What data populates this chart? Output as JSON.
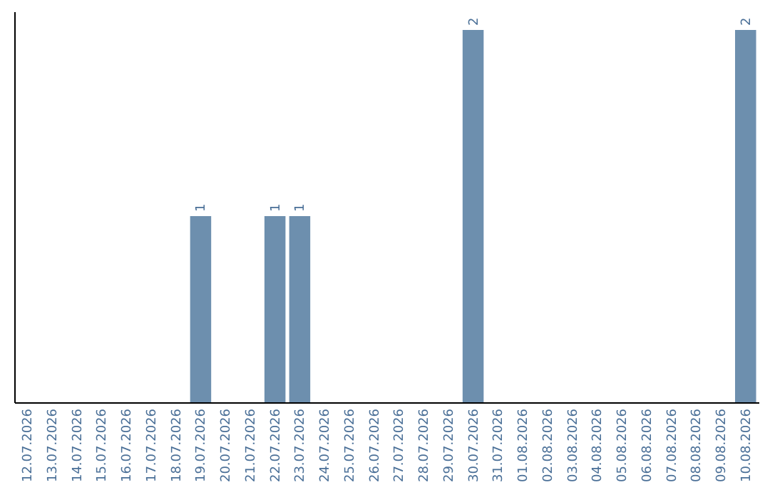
{
  "chart_data": {
    "type": "bar",
    "categories": [
      "12.07.2026",
      "13.07.2026",
      "14.07.2026",
      "15.07.2026",
      "16.07.2026",
      "17.07.2026",
      "18.07.2026",
      "19.07.2026",
      "20.07.2026",
      "21.07.2026",
      "22.07.2026",
      "23.07.2026",
      "24.07.2026",
      "25.07.2026",
      "26.07.2026",
      "27.07.2026",
      "28.07.2026",
      "29.07.2026",
      "30.07.2026",
      "31.07.2026",
      "01.08.2026",
      "02.08.2026",
      "03.08.2026",
      "04.08.2026",
      "05.08.2026",
      "06.08.2026",
      "07.08.2026",
      "08.08.2026",
      "09.08.2026",
      "10.08.2026"
    ],
    "values": [
      0,
      0,
      0,
      0,
      0,
      0,
      0,
      1,
      0,
      0,
      1,
      1,
      0,
      0,
      0,
      0,
      0,
      0,
      2,
      0,
      0,
      0,
      0,
      0,
      0,
      0,
      0,
      0,
      0,
      2
    ],
    "value_labels": [
      null,
      null,
      null,
      null,
      null,
      null,
      null,
      "1",
      null,
      null,
      "1",
      "1",
      null,
      null,
      null,
      null,
      null,
      null,
      "2",
      null,
      null,
      null,
      null,
      null,
      null,
      null,
      null,
      null,
      null,
      "2"
    ],
    "color": "#6d8fae",
    "ylim": [
      0,
      2.1
    ],
    "tick_labels": "x",
    "grid": false
  }
}
